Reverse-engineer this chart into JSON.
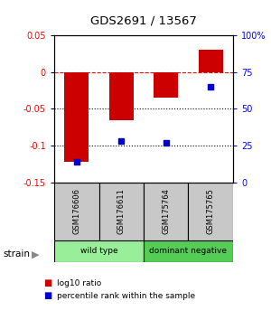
{
  "title": "GDS2691 / 13567",
  "samples": [
    "GSM176606",
    "GSM176611",
    "GSM175764",
    "GSM175765"
  ],
  "log10_ratio": [
    -0.122,
    -0.065,
    -0.035,
    0.03
  ],
  "percentile_rank": [
    14,
    28,
    27,
    65
  ],
  "ylim_left": [
    -0.15,
    0.05
  ],
  "ylim_right": [
    0,
    100
  ],
  "yticks_left": [
    -0.15,
    -0.1,
    -0.05,
    0.0,
    0.05
  ],
  "ytick_labels_left": [
    "-0.15",
    "-0.1",
    "-0.05",
    "0",
    "0.05"
  ],
  "yticks_right": [
    0,
    25,
    50,
    75,
    100
  ],
  "ytick_labels_right": [
    "0",
    "25",
    "50",
    "75",
    "100%"
  ],
  "hlines_dotted": [
    -0.05,
    -0.1
  ],
  "hline_dashdot": 0.0,
  "bar_color": "#cc0000",
  "dot_color": "#0000cc",
  "groups": [
    {
      "label": "wild type",
      "samples": [
        0,
        1
      ],
      "color": "#99ee99"
    },
    {
      "label": "dominant negative",
      "samples": [
        2,
        3
      ],
      "color": "#55cc55"
    }
  ],
  "strain_label": "strain",
  "legend_bar_label": "log10 ratio",
  "legend_dot_label": "percentile rank within the sample",
  "bar_width": 0.55,
  "sample_cell_color": "#c8c8c8",
  "background_color": "#ffffff"
}
